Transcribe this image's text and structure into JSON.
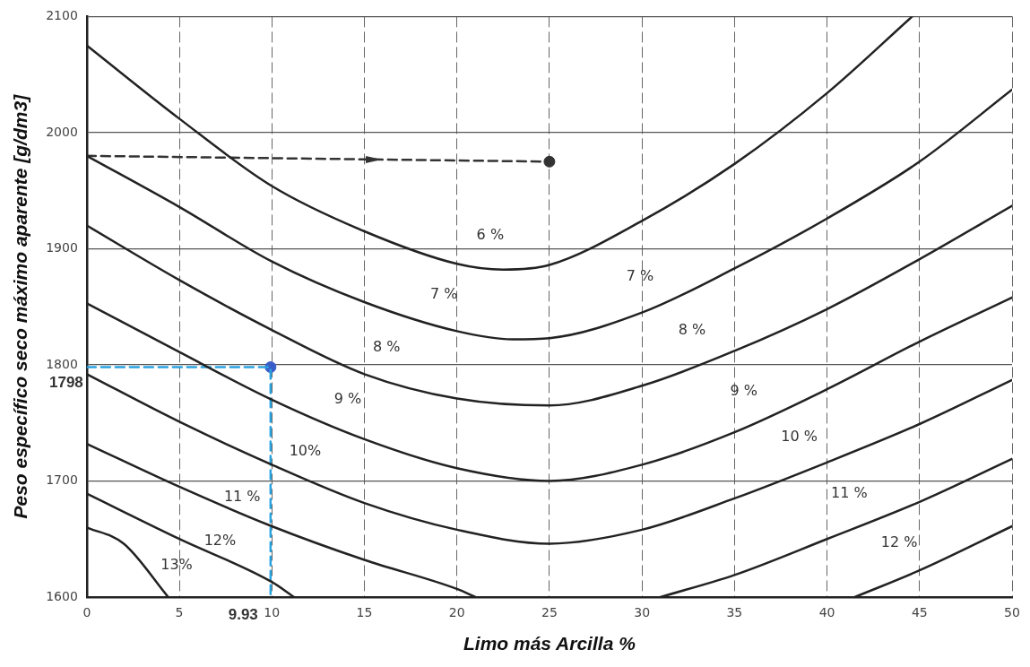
{
  "chart_data": {
    "type": "line",
    "xlabel": "Limo más Arcilla %",
    "ylabel": "Peso específico seco máximo aparente [g/dm3]",
    "xlim": [
      0,
      50
    ],
    "ylim": [
      1600,
      2100
    ],
    "xticks": [
      0,
      5,
      10,
      15,
      20,
      25,
      30,
      35,
      40,
      45,
      50
    ],
    "yticks": [
      1600,
      1700,
      1800,
      1900,
      2000,
      2100
    ],
    "grid": true,
    "legend": false,
    "series": [
      {
        "name": "6 %",
        "color": "#222222",
        "x": [
          0,
          5,
          10,
          15,
          20,
          22.5,
          25,
          30,
          35,
          40,
          44.6
        ],
        "values": [
          2075,
          2012,
          1954,
          1915,
          1887,
          1882,
          1886,
          1924,
          1973,
          2034,
          2100
        ]
      },
      {
        "name": "7 %",
        "color": "#222222",
        "x": [
          0,
          5,
          10,
          15,
          20,
          23,
          25,
          30,
          35,
          40,
          45,
          50
        ],
        "values": [
          1980,
          1936,
          1889,
          1854,
          1829,
          1822,
          1823,
          1845,
          1883,
          1926,
          1975,
          2037
        ]
      },
      {
        "name": "8 %",
        "color": "#222222",
        "x": [
          0,
          5,
          10,
          15,
          20,
          25,
          30,
          35,
          40,
          45,
          50
        ],
        "values": [
          1920,
          1873,
          1830,
          1792,
          1771,
          1765,
          1782,
          1812,
          1848,
          1891,
          1937
        ]
      },
      {
        "name": "9 %",
        "color": "#222222",
        "x": [
          0,
          5,
          10,
          15,
          20,
          25,
          30,
          35,
          40,
          45,
          50
        ],
        "values": [
          1853,
          1811,
          1770,
          1736,
          1711,
          1700,
          1714,
          1742,
          1779,
          1820,
          1858
        ]
      },
      {
        "name": "10%",
        "color": "#222222",
        "x": [
          0,
          5,
          10,
          15,
          20,
          25,
          30,
          35,
          40,
          45,
          50
        ],
        "values": [
          1792,
          1751,
          1714,
          1681,
          1658,
          1646,
          1658,
          1685,
          1716,
          1749,
          1787
        ]
      },
      {
        "name": "11 %",
        "color": "#222222",
        "x": [
          0,
          5,
          10,
          15,
          20,
          21,
          26,
          31,
          35,
          40,
          45,
          50
        ],
        "values": [
          1732,
          1695,
          1661,
          1632,
          1607,
          1600,
          null,
          1600,
          1619,
          1650,
          1682,
          1719
        ]
      },
      {
        "name": "12%",
        "color": "#222222",
        "x": [
          0,
          5,
          10,
          11.2,
          26,
          41.5,
          45,
          50
        ],
        "values": [
          1689,
          1650,
          1613,
          1600,
          null,
          1600,
          1623,
          1661
        ]
      },
      {
        "name": "13%",
        "color": "#222222",
        "x": [
          0,
          2,
          4.4
        ],
        "values": [
          1660,
          1646,
          1600
        ]
      },
      {
        "color": "#333333",
        "x": [
          0,
          25
        ],
        "values": [
          1980,
          1975
        ],
        "line_style": "dashed"
      },
      {
        "type": "scatter",
        "color": "#333333",
        "x": [
          25
        ],
        "values": [
          1975
        ],
        "marker": "circle"
      },
      {
        "color": "#2aa3e0",
        "x": [
          0,
          9.93,
          9.93
        ],
        "values": [
          1798,
          1798,
          1600
        ],
        "line_style": "dashed"
      },
      {
        "type": "scatter",
        "color": "#3a5ec8",
        "x": [
          9.93
        ],
        "values": [
          1798
        ],
        "marker": "circle"
      }
    ],
    "annotations": [
      "7 %",
      "8 %",
      "9 %",
      "10 %",
      "11 %",
      "12 %",
      {
        "text": "1798",
        "x": 0,
        "y": 1798
      },
      {
        "text": "9.93",
        "x": 9.93,
        "y": 1600
      }
    ]
  }
}
